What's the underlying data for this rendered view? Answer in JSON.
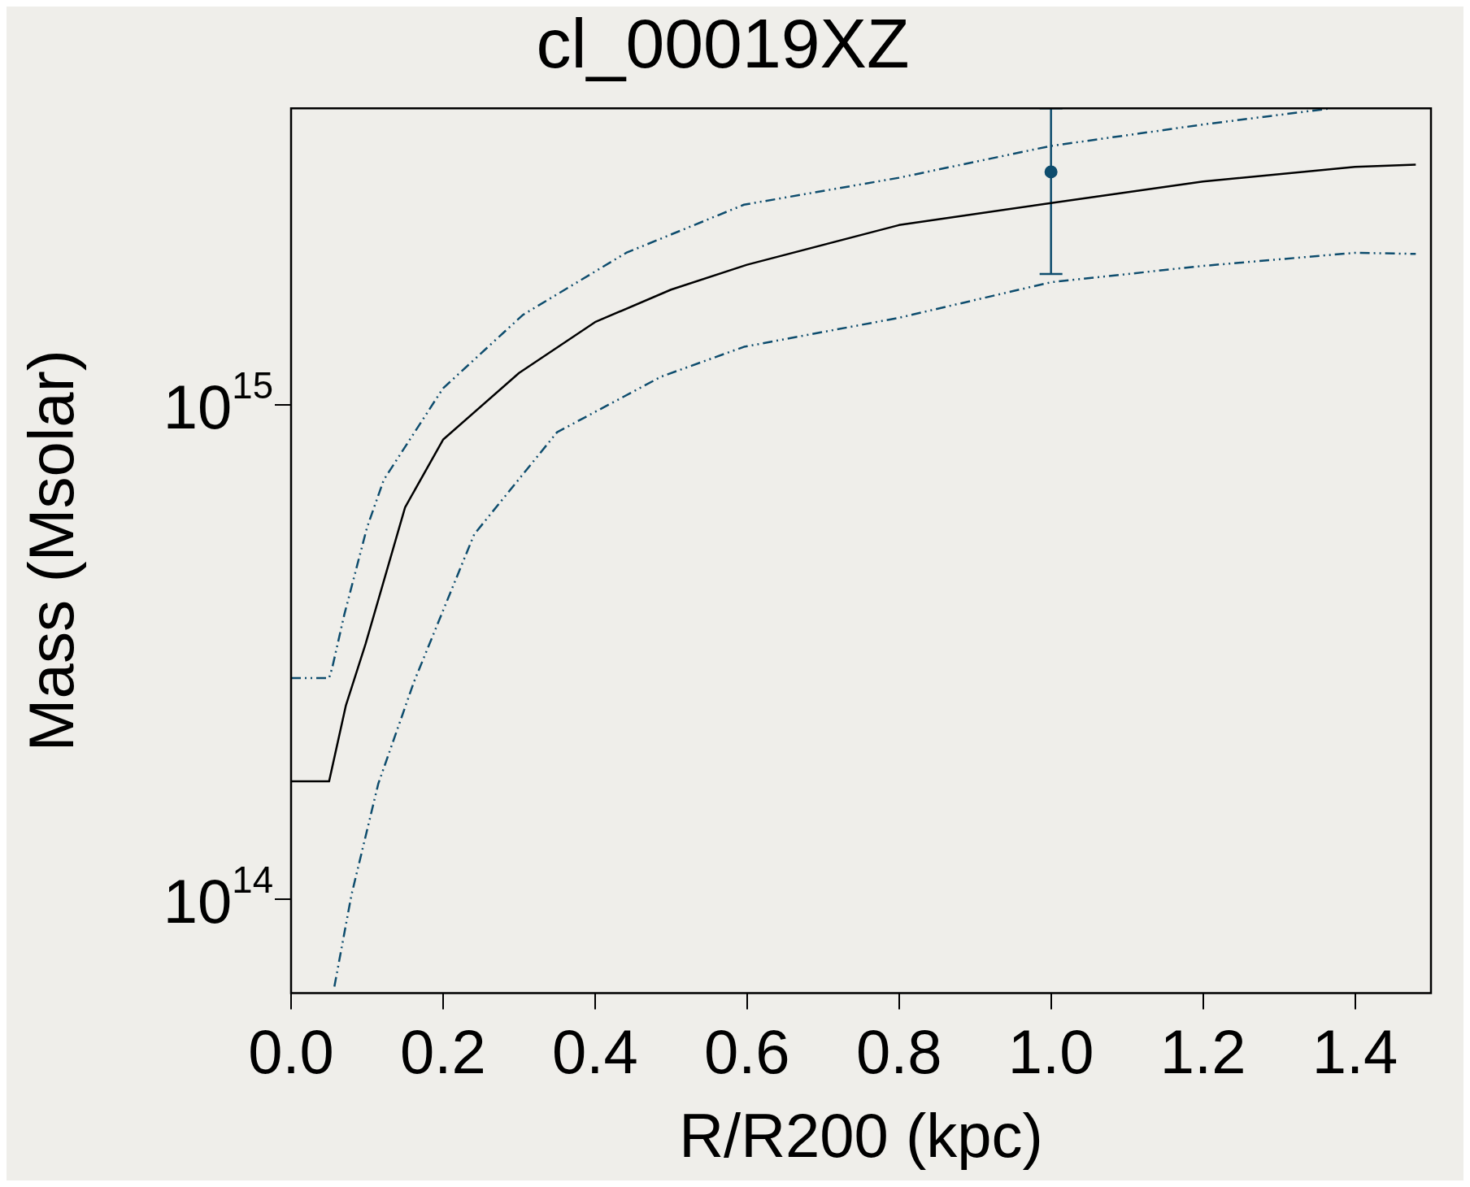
{
  "chart_data": {
    "type": "line",
    "title": "cl_00019XZ",
    "xlabel": "R/R200 (kpc)",
    "ylabel": "Mass (Msolar)",
    "log": "y",
    "grid": false,
    "legend": false,
    "xlim": [
      0,
      1.5
    ],
    "ylim": [
      64500000000000.0,
      3980000000000000.0
    ],
    "xticks": [
      {
        "value": 0,
        "label": "0.0"
      },
      {
        "value": 0.2,
        "label": "0.2"
      },
      {
        "value": 0.4,
        "label": "0.4"
      },
      {
        "value": 0.6,
        "label": "0.6"
      },
      {
        "value": 0.8,
        "label": "0.8"
      },
      {
        "value": 1.0,
        "label": "1.0"
      },
      {
        "value": 1.2,
        "label": "1.2"
      },
      {
        "value": 1.4,
        "label": "1.4"
      }
    ],
    "yticks": [
      {
        "value": 100000000000000.0,
        "label": "10$^{14}$"
      },
      {
        "value": 1000000000000000.0,
        "label": "10$^{15}$"
      }
    ],
    "series": [
      {
        "color": "#000000",
        "line_style": "solid",
        "x": [
          0,
          0.05,
          0.072,
          0.098,
          0.15,
          0.2,
          0.3,
          0.4,
          0.5,
          0.6,
          0.8,
          1.0,
          1.2,
          1.4,
          1.48
        ],
        "values": [
          173000000000000.0,
          173000000000000.0,
          246000000000000.0,
          328000000000000.0,
          620000000000000.0,
          850000000000000.0,
          1160000000000000.0,
          1470000000000000.0,
          1710000000000000.0,
          1920000000000000.0,
          2310000000000000.0,
          2560000000000000.0,
          2830000000000000.0,
          3030000000000000.0,
          3060000000000000.0
        ]
      },
      {
        "color": "#0e4d6e",
        "line_style": "dashed",
        "x": [
          0,
          0.05,
          0.054,
          0.07,
          0.1,
          0.122,
          0.2,
          0.305,
          0.441,
          0.596,
          0.8,
          1.0,
          1.2,
          1.369
        ],
        "values": [
          280000000000000.0,
          280000000000000.0,
          293000000000000.0,
          376000000000000.0,
          565000000000000.0,
          705000000000000.0,
          1080000000000000.0,
          1520000000000000.0,
          2030000000000000.0,
          2540000000000000.0,
          2880000000000000.0,
          3340000000000000.0,
          3690000000000000.0,
          3980000000000000.0
        ]
      },
      {
        "color": "#0e4d6e",
        "line_style": "dashed",
        "x": [
          0.057,
          0.0795,
          0.1147,
          0.1617,
          0.241,
          0.35,
          0.487,
          0.596,
          0.8,
          1.0,
          1.2,
          1.4,
          1.48
        ],
        "values": [
          66500000000000.0,
          102000000000000.0,
          171000000000000.0,
          275000000000000.0,
          547000000000000.0,
          880000000000000.0,
          1140000000000000.0,
          1310000000000000.0,
          1500000000000000.0,
          1770000000000000.0,
          1910000000000000.0,
          2030000000000000.0,
          2020000000000000.0
        ]
      },
      {
        "type": "scatter",
        "marker": "circle",
        "color": "#0e4d6e",
        "x": [
          1.0
        ],
        "values": [
          2960000000000000.0
        ],
        "errors": [
          [
            1840000000000000.0,
            3980000000000000.0
          ]
        ]
      }
    ]
  }
}
